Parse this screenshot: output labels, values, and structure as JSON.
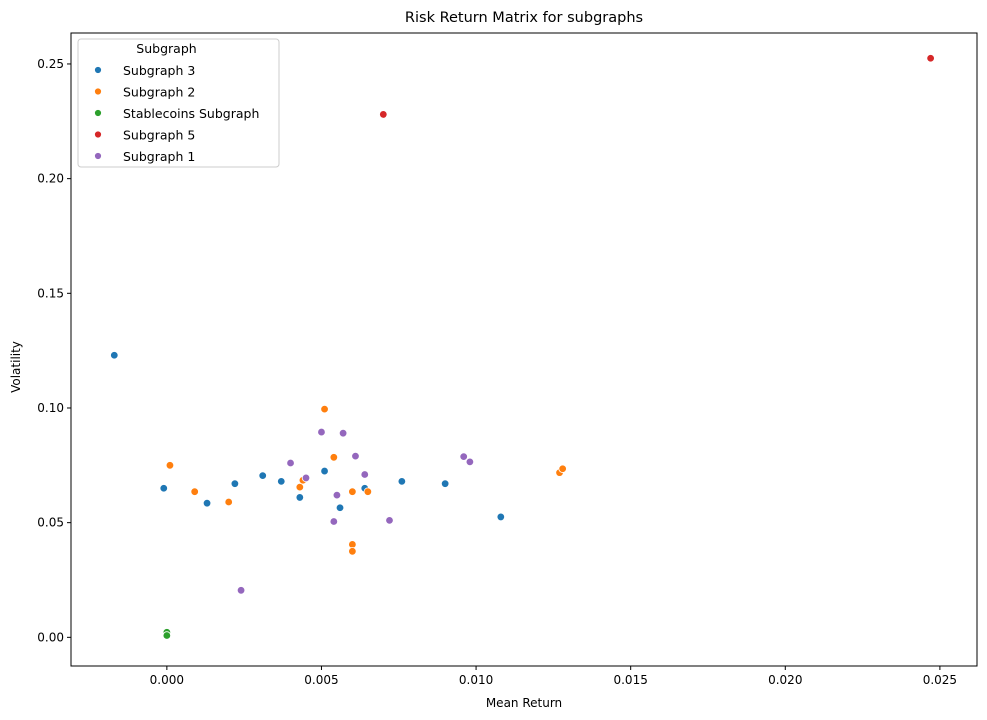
{
  "chart_data": {
    "type": "scatter",
    "title": "Risk Return Matrix for subgraphs",
    "xlabel": "Mean Return",
    "ylabel": "Volatility",
    "xlim": [
      -0.0031,
      0.0262
    ],
    "ylim": [
      -0.0125,
      0.2635
    ],
    "xticks": [
      0.0,
      0.005,
      0.01,
      0.015,
      0.02,
      0.025
    ],
    "xtick_labels": [
      "0.000",
      "0.005",
      "0.010",
      "0.015",
      "0.020",
      "0.025"
    ],
    "yticks": [
      0.0,
      0.05,
      0.1,
      0.15,
      0.2,
      0.25
    ],
    "ytick_labels": [
      "0.00",
      "0.05",
      "0.10",
      "0.15",
      "0.20",
      "0.25"
    ],
    "grid": false,
    "legend": {
      "title": "Subgraph",
      "placement": "top-left"
    },
    "series": [
      {
        "name": "Subgraph 3",
        "color": "#1f77b4",
        "points": [
          [
            -0.0017,
            0.123
          ],
          [
            -0.0001,
            0.065
          ],
          [
            0.0013,
            0.0585
          ],
          [
            0.0022,
            0.067
          ],
          [
            0.0031,
            0.0705
          ],
          [
            0.0037,
            0.068
          ],
          [
            0.0043,
            0.061
          ],
          [
            0.0051,
            0.0725
          ],
          [
            0.0056,
            0.0565
          ],
          [
            0.0064,
            0.065
          ],
          [
            0.0076,
            0.068
          ],
          [
            0.009,
            0.067
          ],
          [
            0.0108,
            0.0525
          ]
        ]
      },
      {
        "name": "Subgraph 2",
        "color": "#ff7f0e",
        "points": [
          [
            0.0001,
            0.075
          ],
          [
            0.0009,
            0.0635
          ],
          [
            0.002,
            0.059
          ],
          [
            0.0043,
            0.0655
          ],
          [
            0.0044,
            0.0685
          ],
          [
            0.0051,
            0.0995
          ],
          [
            0.0054,
            0.0785
          ],
          [
            0.006,
            0.0405
          ],
          [
            0.006,
            0.0375
          ],
          [
            0.006,
            0.0635
          ],
          [
            0.0065,
            0.0635
          ],
          [
            0.0127,
            0.0718
          ],
          [
            0.0128,
            0.0735
          ]
        ]
      },
      {
        "name": "Stablecoins Subgraph",
        "color": "#2ca02c",
        "points": [
          [
            0.0,
            0.0022
          ],
          [
            0.0,
            0.0008
          ]
        ]
      },
      {
        "name": "Subgraph 5",
        "color": "#d62728",
        "points": [
          [
            0.007,
            0.228
          ],
          [
            0.0247,
            0.2525
          ]
        ]
      },
      {
        "name": "Subgraph 1",
        "color": "#9467bd",
        "points": [
          [
            0.0024,
            0.0205
          ],
          [
            0.004,
            0.076
          ],
          [
            0.0045,
            0.0695
          ],
          [
            0.005,
            0.0895
          ],
          [
            0.0054,
            0.0505
          ],
          [
            0.0055,
            0.062
          ],
          [
            0.0057,
            0.089
          ],
          [
            0.0061,
            0.079
          ],
          [
            0.0064,
            0.071
          ],
          [
            0.0072,
            0.051
          ],
          [
            0.0096,
            0.0788
          ],
          [
            0.0098,
            0.0765
          ]
        ]
      }
    ]
  }
}
